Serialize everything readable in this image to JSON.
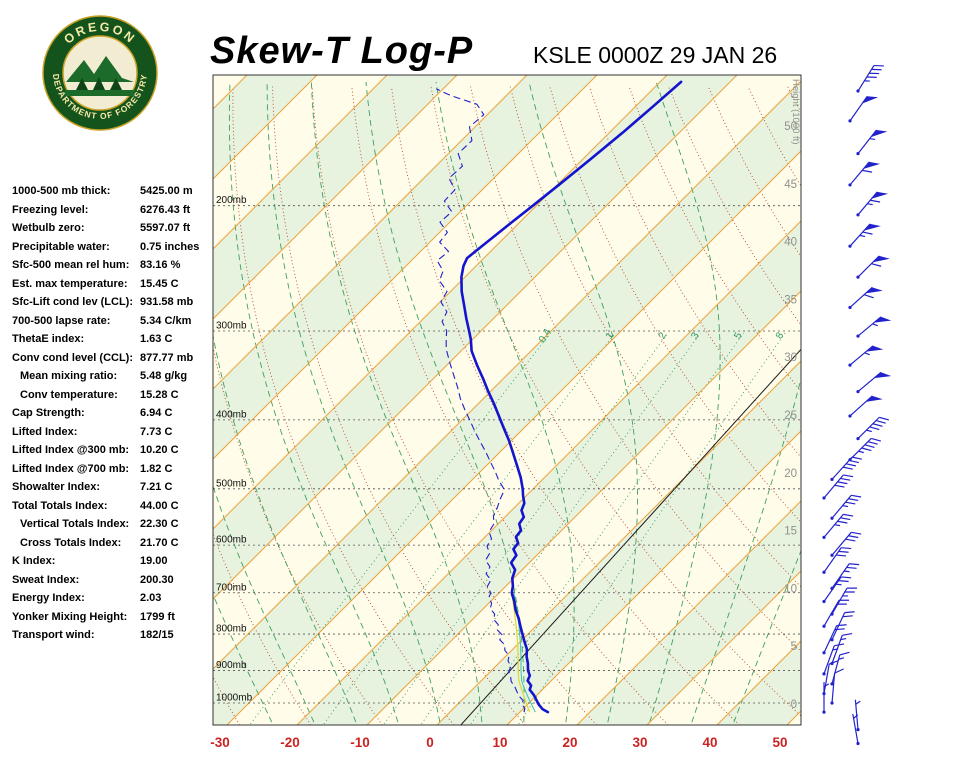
{
  "header": {
    "title": "Skew-T Log-P",
    "station_line": "KSLE 0000Z 29 JAN 26",
    "logo": {
      "arc_top": "OREGON",
      "arc_bottom": "DEPARTMENT OF FORESTRY"
    }
  },
  "stats": {
    "rows": [
      {
        "label": "1000-500 mb thick:",
        "value": "5425.00 m"
      },
      {
        "label": "Freezing level:",
        "value": "6276.43 ft"
      },
      {
        "label": "Wetbulb zero:",
        "value": "5597.07 ft"
      },
      {
        "label": "Precipitable water:",
        "value": "0.75 inches"
      },
      {
        "label": "Sfc-500 mean rel hum:",
        "value": "83.16 %"
      },
      {
        "label": "Est. max temperature:",
        "value": "15.45 C"
      },
      {
        "label": "Sfc-Lift cond lev (LCL):",
        "value": "931.58 mb"
      },
      {
        "label": "700-500 lapse rate:",
        "value": "5.34 C/km"
      },
      {
        "label": "ThetaE index:",
        "value": "1.63 C"
      },
      {
        "label": "Conv cond level (CCL):",
        "value": "877.77 mb"
      },
      {
        "label": "Mean mixing ratio:",
        "value": "5.48 g/kg",
        "indent": true
      },
      {
        "label": "Conv temperature:",
        "value": "15.28 C",
        "indent": true
      },
      {
        "label": "Cap Strength:",
        "value": "6.94 C"
      },
      {
        "label": "Lifted Index:",
        "value": "7.73 C"
      },
      {
        "label": "Lifted Index @300 mb:",
        "value": "10.20 C"
      },
      {
        "label": "Lifted Index @700 mb:",
        "value": "1.82 C"
      },
      {
        "label": "Showalter Index:",
        "value": "7.21 C"
      },
      {
        "label": "Total Totals Index:",
        "value": "44.00 C"
      },
      {
        "label": "Vertical Totals Index:",
        "value": "22.30 C",
        "indent": true
      },
      {
        "label": "Cross Totals Index:",
        "value": "21.70 C",
        "indent": true
      },
      {
        "label": "K Index:",
        "value": "19.00"
      },
      {
        "label": "Sweat Index:",
        "value": "200.30"
      },
      {
        "label": "Energy Index:",
        "value": "2.03"
      },
      {
        "label": "Yonker Mixing Height:",
        "value": "1799 ft"
      },
      {
        "label": "Transport wind:",
        "value": "182/15"
      }
    ]
  },
  "chart_data": {
    "type": "skewt-log-p",
    "station": "KSLE",
    "valid_time": "0000Z 29 JAN 26",
    "temp_axis_c": [
      -30,
      -20,
      -10,
      0,
      10,
      20,
      30,
      40,
      50
    ],
    "pressure_levels_mb": [
      200,
      300,
      400,
      500,
      600,
      700,
      800,
      900,
      1000
    ],
    "height_labels_kft": [
      0,
      5,
      10,
      15,
      20,
      25,
      30,
      35,
      40,
      45,
      50
    ],
    "height_axis_title": "Height (1000 ft)",
    "mixing_ratio_g_kg": [
      0.4,
      1,
      2,
      3,
      5,
      8
    ],
    "isotherm_min_c": -140,
    "isotherm_max_c": 60,
    "isotherm_step_c": 10,
    "dry_adiabat_theta_k": {
      "min": 240,
      "max": 440,
      "step": 10
    },
    "moist_adiabat_start_c": [
      -24,
      -18,
      -12,
      -6,
      0,
      6,
      12,
      18,
      24,
      30,
      36,
      42
    ],
    "reference_line_pt": [
      [
        1074,
        3.4
      ],
      [
        316,
        -1.7
      ]
    ],
    "temperature_profile": [
      [
        1030,
        14
      ],
      [
        1020,
        12.8
      ],
      [
        1005,
        11.6
      ],
      [
        990,
        10.6
      ],
      [
        975,
        9.6
      ],
      [
        958,
        8.2
      ],
      [
        945,
        7.8
      ],
      [
        930,
        6.6
      ],
      [
        915,
        6.2
      ],
      [
        900,
        5.2
      ],
      [
        880,
        4.2
      ],
      [
        860,
        3
      ],
      [
        840,
        2
      ],
      [
        820,
        0.6
      ],
      [
        800,
        -0.8
      ],
      [
        780,
        -2.2
      ],
      [
        760,
        -3.6
      ],
      [
        740,
        -5.2
      ],
      [
        720,
        -6.6
      ],
      [
        700,
        -8.2
      ],
      [
        685,
        -9
      ],
      [
        668,
        -10.2
      ],
      [
        650,
        -11
      ],
      [
        635,
        -12.6
      ],
      [
        620,
        -12.9
      ],
      [
        608,
        -14.2
      ],
      [
        596,
        -14.4
      ],
      [
        584,
        -15.6
      ],
      [
        572,
        -15.8
      ],
      [
        560,
        -17
      ],
      [
        548,
        -17.3
      ],
      [
        536,
        -18.6
      ],
      [
        524,
        -19.2
      ],
      [
        512,
        -20.4
      ],
      [
        500,
        -21.5
      ],
      [
        482,
        -23.4
      ],
      [
        464,
        -25.6
      ],
      [
        446,
        -27.9
      ],
      [
        428,
        -30.3
      ],
      [
        410,
        -33
      ],
      [
        395,
        -35.3
      ],
      [
        380,
        -37.7
      ],
      [
        365,
        -40.3
      ],
      [
        350,
        -42.9
      ],
      [
        335,
        -45.7
      ],
      [
        320,
        -48.5
      ],
      [
        308,
        -50.3
      ],
      [
        300,
        -51.7
      ],
      [
        288,
        -53.9
      ],
      [
        276,
        -56.1
      ],
      [
        264,
        -58.4
      ],
      [
        252,
        -60.5
      ],
      [
        243,
        -61.8
      ],
      [
        237,
        -62.4
      ],
      [
        228,
        -62
      ],
      [
        214,
        -61.3
      ],
      [
        200,
        -60.5
      ],
      [
        186,
        -59.7
      ],
      [
        172,
        -58.9
      ],
      [
        158,
        -58.1
      ],
      [
        145,
        -57.5
      ],
      [
        134,
        -57
      ]
    ],
    "dewpoint_profile": [
      [
        1030,
        10.6
      ],
      [
        1018,
        10.2
      ],
      [
        1005,
        9.2
      ],
      [
        992,
        8.8
      ],
      [
        978,
        7.6
      ],
      [
        963,
        6.6
      ],
      [
        948,
        5.6
      ],
      [
        933,
        4.4
      ],
      [
        918,
        3.6
      ],
      [
        903,
        2.6
      ],
      [
        888,
        2.2
      ],
      [
        873,
        1
      ],
      [
        858,
        0.4
      ],
      [
        843,
        -1
      ],
      [
        828,
        -1.8
      ],
      [
        815,
        -3.2
      ],
      [
        802,
        -3.6
      ],
      [
        789,
        -5
      ],
      [
        776,
        -5.6
      ],
      [
        763,
        -7
      ],
      [
        750,
        -7.6
      ],
      [
        737,
        -9
      ],
      [
        724,
        -9.6
      ],
      [
        711,
        -10.8
      ],
      [
        700,
        -11.2
      ],
      [
        686,
        -12.6
      ],
      [
        672,
        -13
      ],
      [
        658,
        -14.6
      ],
      [
        644,
        -15
      ],
      [
        630,
        -16.6
      ],
      [
        616,
        -17
      ],
      [
        602,
        -18.4
      ],
      [
        588,
        -18.8
      ],
      [
        574,
        -20.2
      ],
      [
        560,
        -20.6
      ],
      [
        546,
        -21.8
      ],
      [
        532,
        -22.4
      ],
      [
        518,
        -23.2
      ],
      [
        505,
        -23.8
      ],
      [
        500,
        -24.2
      ],
      [
        486,
        -26.2
      ],
      [
        472,
        -28
      ],
      [
        458,
        -30
      ],
      [
        444,
        -32
      ],
      [
        430,
        -34.2
      ],
      [
        416,
        -36.4
      ],
      [
        402,
        -38.6
      ],
      [
        388,
        -40.9
      ],
      [
        374,
        -43.2
      ],
      [
        360,
        -45.3
      ],
      [
        346,
        -47.6
      ],
      [
        332,
        -50
      ],
      [
        318,
        -52.4
      ],
      [
        306,
        -54.1
      ],
      [
        300,
        -54.9
      ],
      [
        291,
        -56.9
      ],
      [
        282,
        -57.6
      ],
      [
        273,
        -59.9
      ],
      [
        264,
        -60.5
      ],
      [
        255,
        -63.1
      ],
      [
        247,
        -64
      ],
      [
        239,
        -66.3
      ],
      [
        232,
        -66
      ],
      [
        225,
        -68.6
      ],
      [
        218,
        -68.9
      ],
      [
        211,
        -71.4
      ],
      [
        204,
        -71.2
      ],
      [
        197,
        -73.8
      ],
      [
        190,
        -73.9
      ],
      [
        183,
        -76.4
      ],
      [
        176,
        -76.2
      ],
      [
        169,
        -78.6
      ],
      [
        162,
        -78.5
      ],
      [
        155,
        -80.8
      ],
      [
        149,
        -80.5
      ],
      [
        144,
        -83
      ],
      [
        140,
        -88
      ],
      [
        137,
        -91
      ]
    ],
    "parcel_profile": [
      [
        1030,
        11.4
      ],
      [
        990,
        9
      ],
      [
        950,
        6.6
      ],
      [
        931,
        5.4
      ],
      [
        900,
        3.8
      ],
      [
        860,
        1.8
      ],
      [
        820,
        -0.4
      ],
      [
        780,
        -2.8
      ],
      [
        740,
        -5.4
      ],
      [
        700,
        -8.2
      ]
    ],
    "wetbulb_profile": [
      [
        1030,
        12.2
      ],
      [
        990,
        9.6
      ],
      [
        950,
        7
      ],
      [
        931,
        5.8
      ],
      [
        900,
        4.2
      ],
      [
        860,
        2.2
      ],
      [
        820,
        0
      ],
      [
        780,
        -2.4
      ],
      [
        740,
        -5
      ],
      [
        700,
        -7.9
      ]
    ],
    "winds": [
      [
        1140,
        5,
        170
      ],
      [
        1090,
        5,
        175
      ],
      [
        1030,
        5,
        180
      ],
      [
        1000,
        10,
        185
      ],
      [
        970,
        10,
        190
      ],
      [
        940,
        15,
        195
      ],
      [
        910,
        15,
        200
      ],
      [
        880,
        15,
        200
      ],
      [
        850,
        20,
        205
      ],
      [
        815,
        20,
        205
      ],
      [
        780,
        20,
        210
      ],
      [
        750,
        25,
        210
      ],
      [
        720,
        25,
        215
      ],
      [
        690,
        25,
        215
      ],
      [
        655,
        30,
        215
      ],
      [
        620,
        30,
        220
      ],
      [
        585,
        35,
        220
      ],
      [
        550,
        35,
        220
      ],
      [
        515,
        40,
        220
      ],
      [
        485,
        40,
        222
      ],
      [
        455,
        45,
        225
      ],
      [
        425,
        45,
        225
      ],
      [
        395,
        50,
        228
      ],
      [
        365,
        50,
        230
      ],
      [
        335,
        55,
        230
      ],
      [
        305,
        55,
        230
      ],
      [
        278,
        60,
        228
      ],
      [
        252,
        60,
        225
      ],
      [
        228,
        65,
        222
      ],
      [
        206,
        65,
        220
      ],
      [
        187,
        60,
        220
      ],
      [
        169,
        55,
        218
      ],
      [
        152,
        50,
        215
      ],
      [
        138,
        45,
        212
      ]
    ],
    "colors": {
      "background": "#FFFDE9",
      "band": "#E7F3DF",
      "isotherm": "#EDA23E",
      "dry_adiabat": "#B84A2B",
      "moist_adiabat": "#3FA05C",
      "mixing_ratio": "#2E9B63",
      "pressure_line": "#555555",
      "reference": "#1A1A1A",
      "temperature": "#1414CE",
      "dewpoint": "#2020CC",
      "parcel": "#DED93C",
      "wetbulb": "#3BBFBF",
      "wind": "#2222CC",
      "temp_axis_label": "#CC2222",
      "height_label": "#909090",
      "border": "#333333"
    }
  }
}
